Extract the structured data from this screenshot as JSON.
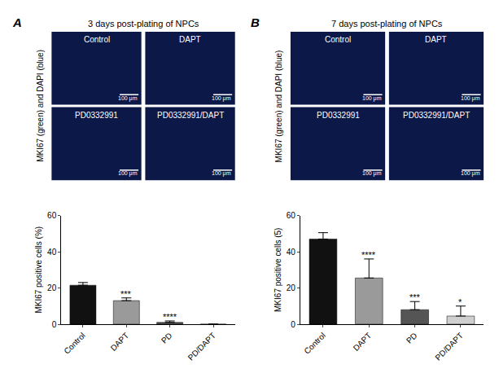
{
  "figure": {
    "panels": [
      {
        "letter": "A",
        "title": "3 days post-plating of NPCs",
        "image_axis_label": "MKI67 (green) and DAPI (blue)",
        "image_labels": [
          "Control",
          "DAPT",
          "PD0332991",
          "PD0332991/DAPT"
        ],
        "scale_bar": "100 μm"
      },
      {
        "letter": "B",
        "title": "7 days post-plating of NPCs",
        "image_axis_label": "MKI67 (green) and DAPI (blue)",
        "image_labels": [
          "Control",
          "DAPT",
          "PD0332991",
          "PD0332991/DAPT"
        ],
        "scale_bar": "100 μm"
      }
    ]
  },
  "chart_data": [
    {
      "type": "bar",
      "y_label": "MKI67 positive cells (%)",
      "categories": [
        "Control",
        "DAPT",
        "PD",
        "PD/DAPT"
      ],
      "values": [
        21.5,
        13,
        1,
        0
      ],
      "errors": [
        1.5,
        1.5,
        0.8,
        0
      ],
      "annotations": [
        null,
        "***",
        "****",
        null
      ],
      "colors": [
        "#111111",
        "#9a9a9a",
        "#555555",
        "#cfcfcf"
      ],
      "ylim": [
        0,
        60
      ],
      "yticks": [
        0,
        20,
        40,
        60
      ],
      "grid": false
    },
    {
      "type": "bar",
      "y_label": "MKI67 positive cells (5)",
      "categories": [
        "Control",
        "DAPT",
        "PD",
        "PD/DAPT"
      ],
      "values": [
        47,
        25.5,
        8,
        4.5
      ],
      "errors": [
        3.5,
        10.5,
        4.5,
        5.5
      ],
      "annotations": [
        null,
        "****",
        "***",
        "*"
      ],
      "colors": [
        "#111111",
        "#9a9a9a",
        "#555555",
        "#cfcfcf"
      ],
      "ylim": [
        0,
        60
      ],
      "yticks": [
        0,
        20,
        40,
        60
      ],
      "grid": false
    }
  ]
}
